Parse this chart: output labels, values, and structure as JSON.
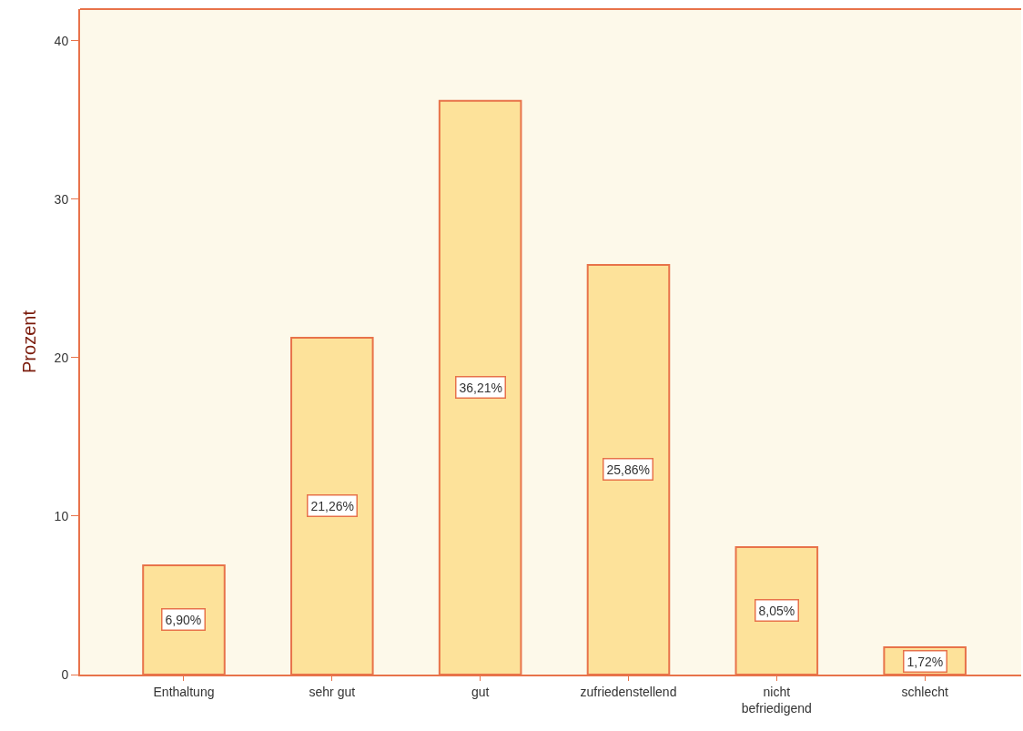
{
  "chart_data": {
    "type": "bar",
    "ylabel": "Prozent",
    "categories": [
      "Enthaltung",
      "sehr gut",
      "gut",
      "zufriedenstellend",
      "nicht\nbefriedigend",
      "schlecht"
    ],
    "values": [
      6.9,
      21.26,
      36.21,
      25.86,
      8.05,
      1.72
    ],
    "value_labels": [
      "6,90%",
      "21,26%",
      "36,21%",
      "25,86%",
      "8,05%",
      "1,72%"
    ],
    "color": "#fde29a",
    "ylim": [
      0,
      42
    ],
    "yticks": [
      0,
      10,
      20,
      30,
      40
    ],
    "grid": false
  }
}
